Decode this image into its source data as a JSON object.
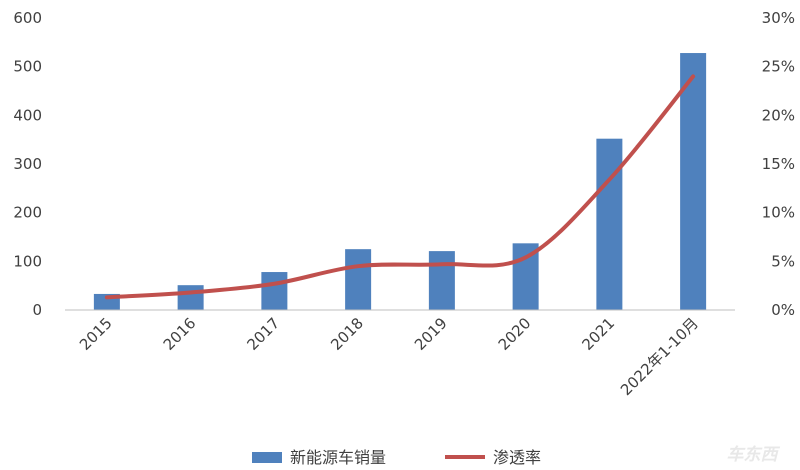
{
  "chart_data": {
    "type": "bar",
    "categories": [
      "2015",
      "2016",
      "2017",
      "2018",
      "2019",
      "2020",
      "2021",
      "2022年1-10月"
    ],
    "series": [
      {
        "name": "新能源车销量",
        "type": "bar",
        "axis": "left",
        "color": "#4f81bd",
        "values": [
          33,
          51,
          78,
          125,
          121,
          137,
          352,
          528
        ]
      },
      {
        "name": "渗透率",
        "type": "line",
        "axis": "right",
        "color": "#c0504d",
        "values": [
          1.3,
          1.8,
          2.7,
          4.5,
          4.7,
          5.4,
          13.4,
          24.0
        ]
      }
    ],
    "y_left": {
      "min": 0,
      "max": 600,
      "ticks": [
        "0",
        "100",
        "200",
        "300",
        "400",
        "500",
        "600"
      ]
    },
    "y_right": {
      "min": 0,
      "max": 30,
      "ticks": [
        "0%",
        "5%",
        "10%",
        "15%",
        "20%",
        "25%",
        "30%"
      ]
    },
    "grid": false,
    "legend_position": "bottom"
  },
  "watermark": "车东西"
}
